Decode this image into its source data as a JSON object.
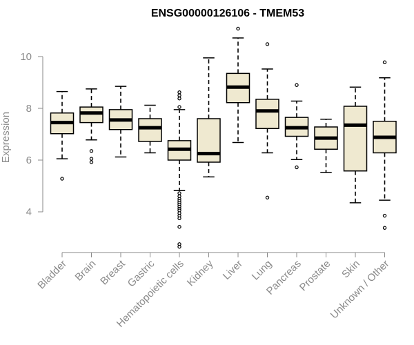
{
  "chart_data": {
    "type": "boxplot",
    "title": "ENSG00000126106 - TMEM53",
    "xlabel": "",
    "ylabel": "Expression",
    "ylim": [
      2.4,
      11.6
    ],
    "yticks": [
      4,
      6,
      8,
      10
    ],
    "box_fill": "#efe9d0",
    "categories": [
      "Bladder",
      "Brain",
      "Breast",
      "Gastric",
      "Hematopoietic cells",
      "Kidney",
      "Liver",
      "Lung",
      "Pancreas",
      "Prostate",
      "Skin",
      "Unknown / Other"
    ],
    "boxes": [
      {
        "min": 6.05,
        "q1": 7.02,
        "median": 7.45,
        "q3": 7.82,
        "max": 8.65,
        "outliers": [
          5.28
        ]
      },
      {
        "min": 6.78,
        "q1": 7.45,
        "median": 7.82,
        "q3": 8.05,
        "max": 8.75,
        "outliers": [
          6.35,
          6.05,
          5.92
        ]
      },
      {
        "min": 6.12,
        "q1": 7.18,
        "median": 7.55,
        "q3": 7.95,
        "max": 8.85,
        "outliers": []
      },
      {
        "min": 6.28,
        "q1": 6.72,
        "median": 7.25,
        "q3": 7.6,
        "max": 8.12,
        "outliers": []
      },
      {
        "min": 4.82,
        "q1": 6.0,
        "median": 6.42,
        "q3": 6.75,
        "max": 7.95,
        "outliers": [
          8.62,
          8.5,
          8.38,
          8.05,
          4.72,
          4.6,
          4.5,
          4.42,
          4.35,
          4.28,
          4.2,
          4.12,
          4.05,
          3.95,
          3.85,
          3.75,
          3.42,
          2.75,
          2.65
        ]
      },
      {
        "min": 5.35,
        "q1": 5.92,
        "median": 6.25,
        "q3": 7.6,
        "max": 9.95,
        "outliers": []
      },
      {
        "min": 6.68,
        "q1": 8.22,
        "median": 8.82,
        "q3": 9.35,
        "max": 10.72,
        "outliers": [
          11.08
        ]
      },
      {
        "min": 6.28,
        "q1": 7.22,
        "median": 7.9,
        "q3": 8.35,
        "max": 9.52,
        "outliers": [
          10.48,
          4.55
        ]
      },
      {
        "min": 6.02,
        "q1": 6.92,
        "median": 7.25,
        "q3": 7.65,
        "max": 8.28,
        "outliers": [
          8.9,
          5.72
        ]
      },
      {
        "min": 5.52,
        "q1": 6.42,
        "median": 6.85,
        "q3": 7.28,
        "max": 7.58,
        "outliers": []
      },
      {
        "min": 4.35,
        "q1": 5.58,
        "median": 7.35,
        "q3": 8.08,
        "max": 8.82,
        "outliers": []
      },
      {
        "min": 4.45,
        "q1": 6.28,
        "median": 6.88,
        "q3": 7.5,
        "max": 9.18,
        "outliers": [
          9.78,
          3.85,
          3.38
        ]
      }
    ]
  }
}
